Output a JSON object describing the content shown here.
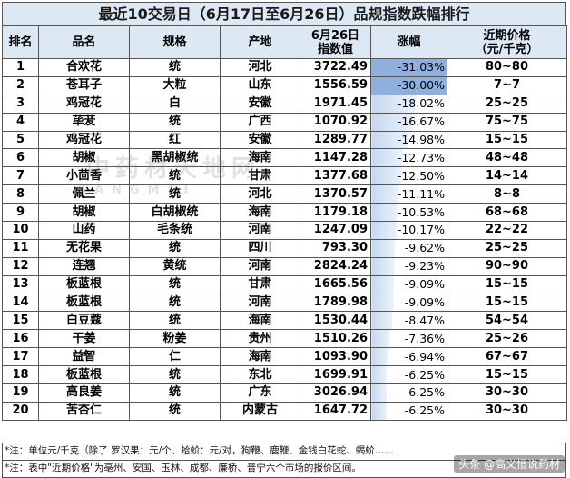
{
  "title": "最近10交易日（6月17日至6月26日）品规指数跌幅排行",
  "headers": {
    "rank": "排名",
    "name": "品名",
    "spec": "规格",
    "origin": "产地",
    "index_line1": "6月26日",
    "index_line2": "指数值",
    "change": "涨幅",
    "price_line1": "近期价格",
    "price_line2": "（元/千克）"
  },
  "rows": [
    {
      "rank": "1",
      "name": "合欢花",
      "spec": "统",
      "origin": "河北",
      "index": "3722.49",
      "change": "-31.03%",
      "change_value": -31.03,
      "price": "80~80"
    },
    {
      "rank": "2",
      "name": "苍耳子",
      "spec": "大粒",
      "origin": "山东",
      "index": "1556.59",
      "change": "-30.00%",
      "change_value": -30.0,
      "price": "7~7"
    },
    {
      "rank": "3",
      "name": "鸡冠花",
      "spec": "白",
      "origin": "安徽",
      "index": "1971.45",
      "change": "-18.02%",
      "change_value": -18.02,
      "price": "25~25"
    },
    {
      "rank": "4",
      "name": "荜茇",
      "spec": "统",
      "origin": "广西",
      "index": "1070.92",
      "change": "-16.67%",
      "change_value": -16.67,
      "price": "75~75"
    },
    {
      "rank": "5",
      "name": "鸡冠花",
      "spec": "红",
      "origin": "安徽",
      "index": "1289.77",
      "change": "-14.98%",
      "change_value": -14.98,
      "price": "15~15"
    },
    {
      "rank": "6",
      "name": "胡椒",
      "spec": "黑胡椒统",
      "origin": "海南",
      "index": "1147.28",
      "change": "-12.73%",
      "change_value": -12.73,
      "price": "48~48"
    },
    {
      "rank": "7",
      "name": "小茴香",
      "spec": "统",
      "origin": "甘肃",
      "index": "1377.68",
      "change": "-12.50%",
      "change_value": -12.5,
      "price": "14~14"
    },
    {
      "rank": "8",
      "name": "佩兰",
      "spec": "统",
      "origin": "河北",
      "index": "1370.57",
      "change": "-11.11%",
      "change_value": -11.11,
      "price": "8~8"
    },
    {
      "rank": "9",
      "name": "胡椒",
      "spec": "白胡椒统",
      "origin": "海南",
      "index": "1179.18",
      "change": "-10.53%",
      "change_value": -10.53,
      "price": "68~68"
    },
    {
      "rank": "10",
      "name": "山药",
      "spec": "毛条统",
      "origin": "河南",
      "index": "1247.09",
      "change": "-10.17%",
      "change_value": -10.17,
      "price": "22~22"
    },
    {
      "rank": "11",
      "name": "无花果",
      "spec": "统",
      "origin": "四川",
      "index": "793.30",
      "change": "-9.62%",
      "change_value": -9.62,
      "price": "25~25"
    },
    {
      "rank": "12",
      "name": "连翘",
      "spec": "黄统",
      "origin": "河南",
      "index": "2824.24",
      "change": "-9.23%",
      "change_value": -9.23,
      "price": "90~90"
    },
    {
      "rank": "13",
      "name": "板蓝根",
      "spec": "统",
      "origin": "甘肃",
      "index": "1665.56",
      "change": "-9.09%",
      "change_value": -9.09,
      "price": "15~15"
    },
    {
      "rank": "14",
      "name": "板蓝根",
      "spec": "统",
      "origin": "河南",
      "index": "1789.98",
      "change": "-9.09%",
      "change_value": -9.09,
      "price": "15~15"
    },
    {
      "rank": "15",
      "name": "白豆蔻",
      "spec": "统",
      "origin": "海南",
      "index": "1530.44",
      "change": "-8.47%",
      "change_value": -8.47,
      "price": "54~54"
    },
    {
      "rank": "16",
      "name": "干姜",
      "spec": "粉姜",
      "origin": "贵州",
      "index": "1510.26",
      "change": "-7.36%",
      "change_value": -7.36,
      "price": "25~26"
    },
    {
      "rank": "17",
      "name": "益智",
      "spec": "仁",
      "origin": "海南",
      "index": "1093.90",
      "change": "-6.94%",
      "change_value": -6.94,
      "price": "67~67"
    },
    {
      "rank": "18",
      "name": "板蓝根",
      "spec": "统",
      "origin": "东北",
      "index": "1699.91",
      "change": "-6.25%",
      "change_value": -6.25,
      "price": "15~15"
    },
    {
      "rank": "19",
      "name": "高良姜",
      "spec": "统",
      "origin": "广东",
      "index": "3026.94",
      "change": "-6.25%",
      "change_value": -6.25,
      "price": "30~30"
    },
    {
      "rank": "20",
      "name": "苦杏仁",
      "spec": "统",
      "origin": "内蒙古",
      "index": "1647.72",
      "change": "-6.25%",
      "change_value": -6.25,
      "price": "30~30"
    }
  ],
  "notes": [
    "*注：单位元/千克（除了 罗汉果：元/个、蛤蚧：元/对，狗鞭、鹿鞭、金钱白花蛇、蝎蚧……",
    "*注：表中\"近期价格\"为亳州、安国、玉林、成都、廉桥、普宁六个市场的报价区间。"
  ],
  "watermark": "中药材天地网",
  "watermark_sub": "KANGMEI",
  "badge": "头条 @高义恒说药材",
  "colors": {
    "header_bg": "#dce9f5",
    "bar_strong": "#8fb0de",
    "bar_light": "#eaf2fb",
    "border": "#555555"
  }
}
